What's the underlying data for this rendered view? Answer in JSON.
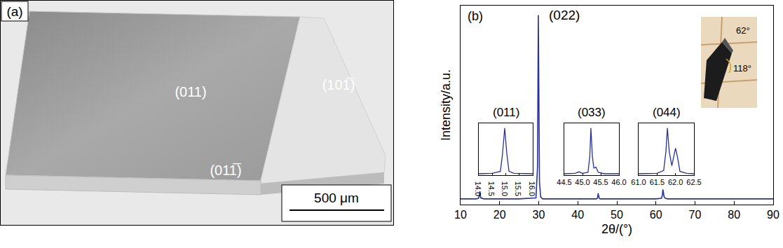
{
  "panel_a": {
    "label": "(a)",
    "faces": [
      "(011)",
      "(101̅)",
      "(011̅)"
    ],
    "scale_bar": "500 μm"
  },
  "photo_inset": {
    "labels": [
      "62°",
      "118°"
    ]
  },
  "chart_data": [
    {
      "type": "line",
      "panel_label": "(b)",
      "xlabel": "2θ/(°)",
      "ylabel": "Intensity/a.u.",
      "color": "#27339c",
      "x": [
        10,
        14.0,
        14.6,
        14.8,
        14.9,
        14.96,
        15.05,
        15.2,
        16,
        20,
        25,
        29.3,
        29.7,
        29.9,
        30.05,
        30.2,
        30.5,
        31,
        35,
        40,
        44.8,
        45.05,
        45.15,
        45.23,
        45.3,
        45.37,
        45.45,
        45.7,
        47,
        50,
        55,
        60,
        61.4,
        61.65,
        61.78,
        61.9,
        62.0,
        62.1,
        62.4,
        63,
        70,
        80,
        90
      ],
      "values": [
        3,
        3,
        3.3,
        4.5,
        6,
        7,
        5,
        3.5,
        3,
        3,
        3,
        3.5,
        20,
        100,
        60,
        12,
        4,
        3,
        3,
        3,
        3,
        3.5,
        5,
        6,
        4.5,
        4.5,
        3.5,
        3,
        3,
        3,
        3,
        3,
        3.3,
        5,
        8,
        5.5,
        6,
        4,
        3.3,
        3,
        3,
        3,
        3
      ],
      "xlim": [
        10,
        90
      ],
      "xticks": [
        10,
        20,
        30,
        40,
        50,
        60,
        70,
        80,
        90
      ],
      "ylim": [
        0,
        105
      ],
      "tick_labels": "x",
      "annotations": [
        {
          "text": "(022)",
          "x": 36.5,
          "y": 100
        }
      ]
    },
    {
      "type": "line",
      "title": "(011)",
      "color": "#27339c",
      "x": [
        14.0,
        14.5,
        14.8,
        14.88,
        14.96,
        15.04,
        15.12,
        15.3,
        16.0
      ],
      "values": [
        0.03,
        0.04,
        0.08,
        0.45,
        1.0,
        0.45,
        0.08,
        0.04,
        0.03
      ],
      "xlim": [
        14.0,
        16.0
      ],
      "xticks": [
        {
          "value": 14.0,
          "label": "14.0"
        },
        14.5,
        {
          "value": 15.0,
          "label": "15.0"
        },
        15.5,
        {
          "value": 16.0,
          "label": "16.0"
        }
      ],
      "ylim": [
        0,
        1.1
      ],
      "tick_labels": "x"
    },
    {
      "type": "line",
      "title": "(033)",
      "color": "#27339c",
      "x": [
        44.5,
        44.8,
        44.9,
        45.0,
        45.15,
        45.2,
        45.23,
        45.27,
        45.31,
        45.37,
        45.43,
        45.6,
        46.0
      ],
      "values": [
        0.03,
        0.04,
        0.07,
        0.04,
        0.06,
        0.4,
        1.0,
        0.4,
        0.15,
        0.17,
        0.06,
        0.03,
        0.03
      ],
      "xlim": [
        44.5,
        46.0
      ],
      "xticks": [
        44.5,
        {
          "value": 45.0,
          "label": "45.0"
        },
        45.5,
        {
          "value": 46.0,
          "label": "46.0"
        }
      ],
      "ylim": [
        0,
        1.1
      ],
      "tick_labels": "x"
    },
    {
      "type": "line",
      "title": "(044)",
      "color": "#27339c",
      "x": [
        61.0,
        61.5,
        61.68,
        61.74,
        61.78,
        61.83,
        61.9,
        61.96,
        62.0,
        62.05,
        62.12,
        62.3,
        62.5
      ],
      "values": [
        0.03,
        0.04,
        0.1,
        0.5,
        1.0,
        0.5,
        0.2,
        0.45,
        0.57,
        0.4,
        0.08,
        0.04,
        0.03
      ],
      "xlim": [
        61.0,
        62.5
      ],
      "xticks": [
        {
          "value": 61.0,
          "label": "61.0"
        },
        61.5,
        {
          "value": 62.0,
          "label": "62.0"
        },
        62.5
      ],
      "ylim": [
        0,
        1.1
      ],
      "tick_labels": "x"
    }
  ]
}
